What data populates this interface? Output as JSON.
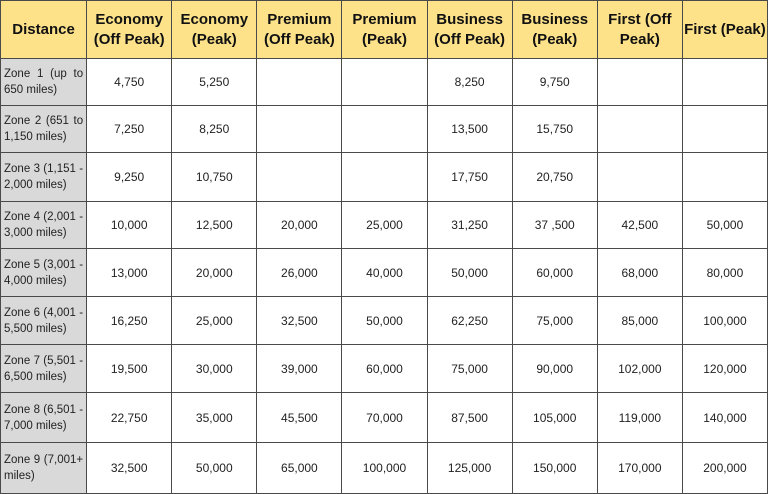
{
  "table": {
    "columns": [
      "Distance",
      "Economy (Off Peak)",
      "Economy (Peak)",
      "Premium (Off Peak)",
      "Premium (Peak)",
      "Business (Off Peak)",
      "Business (Peak)",
      "First (Off Peak)",
      "First (Peak)"
    ],
    "rows": [
      [
        "Zone 1 (up to 650 miles)",
        "4,750",
        "5,250",
        null,
        null,
        "8,250",
        "9,750",
        null,
        null
      ],
      [
        "Zone 2 (651 to 1,150 miles)",
        "7,250",
        "8,250",
        null,
        null,
        "13,500",
        "15,750",
        null,
        null
      ],
      [
        "Zone 3 (1,151 - 2,000 miles)",
        "9,250",
        "10,750",
        null,
        null,
        "17,750",
        "20,750",
        null,
        null
      ],
      [
        "Zone 4 (2,001 - 3,000 miles)",
        "10,000",
        "12,500",
        "20,000",
        "25,000",
        "31,250",
        "37 ,500",
        "42,500",
        "50,000"
      ],
      [
        "Zone 5 (3,001 - 4,000 miles)",
        "13,000",
        "20,000",
        "26,000",
        "40,000",
        "50,000",
        "60,000",
        "68,000",
        "80,000"
      ],
      [
        "Zone 6 (4,001 - 5,500 miles)",
        "16,250",
        "25,000",
        "32,500",
        "50,000",
        "62,250",
        "75,000",
        "85,000",
        "100,000"
      ],
      [
        "Zone 7 (5,501 - 6,500 miles)",
        "19,500",
        "30,000",
        "39,000",
        "60,000",
        "75,000",
        "90,000",
        "102,000",
        "120,000"
      ],
      [
        "Zone 8 (6,501 - 7,000 miles)",
        "22,750",
        "35,000",
        "45,500",
        "70,000",
        "87,500",
        "105,000",
        "119,000",
        "140,000"
      ],
      [
        "Zone 9 (7,001+ miles)",
        "32,500",
        "50,000",
        "65,000",
        "100,000",
        "125,000",
        "150,000",
        "170,000",
        "200,000"
      ]
    ]
  }
}
